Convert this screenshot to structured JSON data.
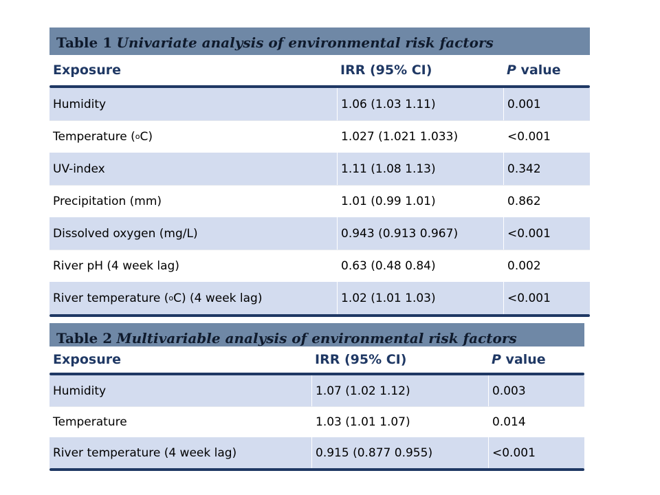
{
  "table1": {
    "caption_num": "Table 1",
    "caption_text": "Univariate analysis of environmental risk factors",
    "headers": {
      "exposure": "Exposure",
      "irr": "IRR (95% CI)",
      "p_italic": "P",
      "p_rest": " value"
    },
    "rows": [
      {
        "exposure": "Humidity",
        "irr": "1.06 (1.03 1.11)",
        "p": "0.001"
      },
      {
        "exposure_pre": "Temperature (",
        "exposure_sup": "o",
        "exposure_post": "C)",
        "irr": "1.027 (1.021 1.033)",
        "p": "<0.001"
      },
      {
        "exposure": "UV-index",
        "irr": "1.11 (1.08 1.13)",
        "p": "0.342"
      },
      {
        "exposure": "Precipitation (mm)",
        "irr": "1.01 (0.99 1.01)",
        "p": "0.862"
      },
      {
        "exposure": "Dissolved oxygen (mg/L)",
        "irr": "0.943 (0.913 0.967)",
        "p": "<0.001"
      },
      {
        "exposure": "River pH (4 week lag)",
        "irr": "0.63 (0.48 0.84)",
        "p": "0.002"
      },
      {
        "exposure_pre": "River temperature (",
        "exposure_sup": "o",
        "exposure_post": "C) (4 week lag)",
        "irr": "1.02 (1.01 1.03)",
        "p": "<0.001"
      }
    ]
  },
  "table2": {
    "caption_num": "Table 2",
    "caption_text": "Multivariable analysis of environmental risk factors",
    "headers": {
      "exposure": "Exposure",
      "irr": "IRR (95% CI)",
      "p_italic": "P",
      "p_rest": " value"
    },
    "rows": [
      {
        "exposure": "Humidity",
        "irr": "1.07 (1.02 1.12)",
        "p": "0.003"
      },
      {
        "exposure": "Temperature",
        "irr": "1.03 (1.01 1.07)",
        "p": "0.014"
      },
      {
        "exposure": "River temperature (4 week lag)",
        "irr": "0.915 (0.877 0.955)",
        "p": "<0.001"
      }
    ]
  }
}
